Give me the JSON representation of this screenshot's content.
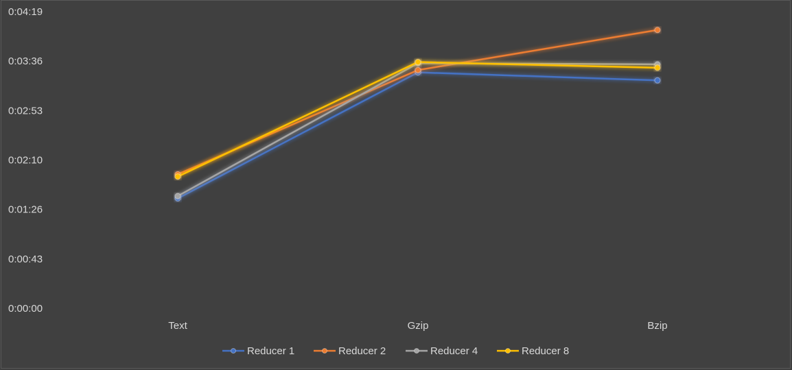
{
  "chart_data": {
    "type": "line",
    "title": "",
    "xlabel": "",
    "ylabel": "",
    "categories": [
      "Text",
      "Gzip",
      "Bzip"
    ],
    "y_ticks": [
      "0:00:00",
      "0:00:43",
      "0:01:26",
      "0:02:10",
      "0:02:53",
      "0:03:36",
      "0:04:19"
    ],
    "ylim_seconds": [
      0,
      259
    ],
    "grid": false,
    "legend_position": "bottom",
    "series": [
      {
        "name": "Reducer 1",
        "color": "#4472c4",
        "values_seconds": [
          96,
          206,
          199
        ]
      },
      {
        "name": "Reducer 2",
        "color": "#ed7d31",
        "values_seconds": [
          117,
          208,
          243
        ]
      },
      {
        "name": "Reducer 4",
        "color": "#a5a5a5",
        "values_seconds": [
          98,
          214,
          213
        ]
      },
      {
        "name": "Reducer 8",
        "color": "#ffc000",
        "values_seconds": [
          115,
          215,
          210
        ]
      }
    ]
  }
}
